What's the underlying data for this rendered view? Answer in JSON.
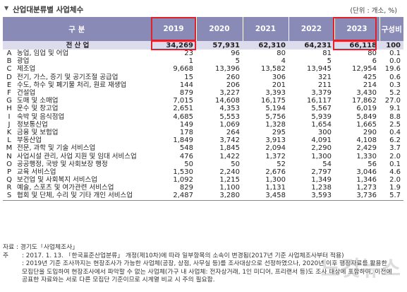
{
  "header": {
    "title": "산업대분류별 사업체수",
    "unit": "(단위 : 개소, %)"
  },
  "table": {
    "columns": [
      "구 분",
      "2019",
      "2020",
      "2021",
      "2022",
      "2023",
      "구성비"
    ],
    "total": {
      "label": "전 산 업",
      "values": [
        "34,269",
        "57,931",
        "62,310",
        "64,231",
        "66,118",
        "100"
      ]
    },
    "rows": [
      {
        "code": "A",
        "name": "농업, 임업 및 어업",
        "values": [
          "23",
          "96",
          "80",
          "81",
          "80",
          "0.1"
        ]
      },
      {
        "code": "B",
        "name": "광업",
        "values": [
          "1",
          "5",
          "4",
          "5",
          "6",
          "0.0"
        ]
      },
      {
        "code": "C",
        "name": "제조업",
        "values": [
          "9,668",
          "13,396",
          "13,582",
          "13,945",
          "12,954",
          "19.6"
        ]
      },
      {
        "code": "D",
        "name": "전기, 가스, 증기 및 공기조절 공급업",
        "values": [
          "15",
          "260",
          "306",
          "321",
          "425",
          "0.6"
        ]
      },
      {
        "code": "E",
        "name": "수도, 하수 및 폐기물 처리, 원료 재생업",
        "values": [
          "144",
          "206",
          "201",
          "211",
          "214",
          "0.3"
        ]
      },
      {
        "code": "F",
        "name": "건설업",
        "values": [
          "879",
          "3,227",
          "3,393",
          "3,379",
          "3,430",
          "5.2"
        ]
      },
      {
        "code": "G",
        "name": "도매 및 소매업",
        "values": [
          "7,015",
          "14,608",
          "16,175",
          "16,117",
          "17,862",
          "27.0"
        ]
      },
      {
        "code": "H",
        "name": "운수 및 창고업",
        "values": [
          "2,651",
          "4,353",
          "5,194",
          "5,567",
          "6,019",
          "9.1"
        ]
      },
      {
        "code": "I",
        "name": "숙박 및 음식점업",
        "values": [
          "4,685",
          "5,553",
          "5,756",
          "5,939",
          "5,849",
          "8.8"
        ]
      },
      {
        "code": "J",
        "name": "정보통신업",
        "values": [
          "149",
          "1,069",
          "1,328",
          "1,654",
          "1,665",
          "2.5"
        ]
      },
      {
        "code": "K",
        "name": "금융 및 보험업",
        "values": [
          "178",
          "264",
          "295",
          "300",
          "290",
          "0.4"
        ]
      },
      {
        "code": "L",
        "name": "부동산업",
        "values": [
          "1,849",
          "3,742",
          "3,913",
          "4,091",
          "4,108",
          "6.2"
        ]
      },
      {
        "code": "M",
        "name": "전문, 과학 및 기술 서비스업",
        "values": [
          "548",
          "1,845",
          "2,094",
          "2,290",
          "2,429",
          "3.7"
        ]
      },
      {
        "code": "N",
        "name": "사업시설 관리, 사업 지원 및 임대 서비스업",
        "values": [
          "476",
          "1,422",
          "1,372",
          "1,300",
          "1,330",
          "2.0"
        ]
      },
      {
        "code": "O",
        "name": "공공행정, 국방 및 사회보장 행정",
        "values": [
          "50",
          "50",
          "52",
          "54",
          "56",
          "0.1"
        ]
      },
      {
        "code": "P",
        "name": "교육 서비스업",
        "values": [
          "1,530",
          "2,240",
          "2,676",
          "2,797",
          "3,046",
          "4.6"
        ]
      },
      {
        "code": "Q",
        "name": "보건업 및 사회복지 서비스업",
        "values": [
          "1,092",
          "1,215",
          "1,300",
          "1,349",
          "1,346",
          "2.0"
        ]
      },
      {
        "code": "R",
        "name": "예술, 스포츠 및 여가관련 서비스업",
        "values": [
          "829",
          "1,100",
          "1,131",
          "1,238",
          "1,273",
          "1.9"
        ]
      },
      {
        "code": "S",
        "name": "협회 및 단체, 수리 및 기타 개인 서비스업",
        "values": [
          "2,487",
          "3,280",
          "3,458",
          "3,593",
          "3,736",
          "5.7"
        ]
      }
    ]
  },
  "notes": {
    "source_label": "자료 :",
    "source": "경기도「사업체조사」",
    "note_label": "주",
    "lines": [
      ": 2017. 1. 13. 「한국표준산업분류」 개정(제10차)에 따라 일부항목의 소속이 변경됨(2017년 기준 사업체조사부터 적용)",
      ": 2019년 기준 조사까지는 현장조사가 가능한 사업체(공장, 상점, 사무실 등)를 조사대상으로 선정하였으나, 2020년 이후 행정자료를 활용한",
      "모집단을 도입하여 현장조사에서 파악할 수 없는 사업체(가구 내 사업체: 전자상거래, 1인 미디어, 프리랜서 등)도 조사 대상에 포함하여, 이전에",
      "공표한 자료와는 서로 다른 모집단 기준이므로 시계열 비교 시 주의 필요함."
    ]
  },
  "watermark": "노컷뉴스",
  "highlight_color": "#e0202a",
  "header_color": "#8a8ab6",
  "total_row_color": "#dcdcec"
}
